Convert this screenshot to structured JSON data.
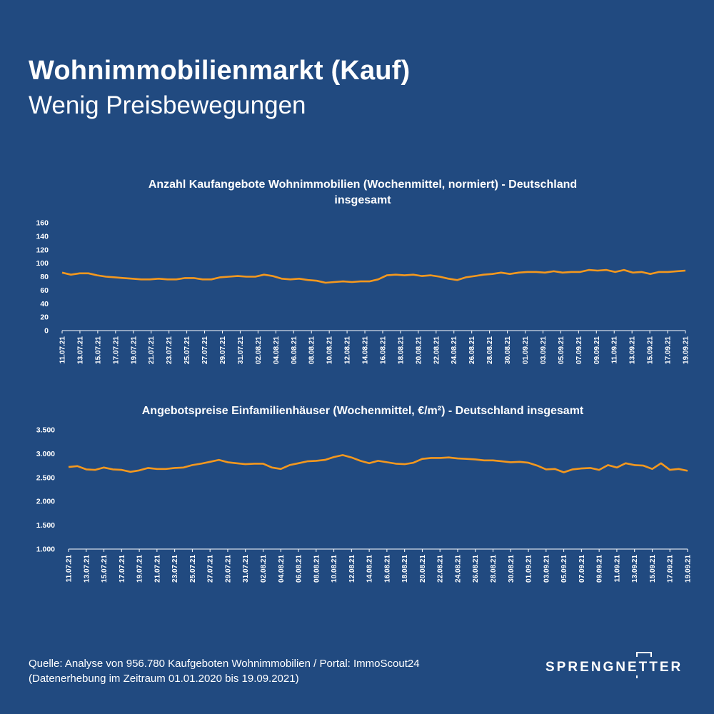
{
  "header": {
    "title": "Wohnimmobilienmarkt (Kauf)",
    "subtitle": "Wenig Preisbewegungen"
  },
  "chart_data": [
    {
      "type": "line",
      "title_line1": "Anzahl Kaufangebote Wohnimmobilien (Wochenmittel, normiert) - Deutschland",
      "title_line2": "insgesamt",
      "ylim": [
        0,
        160
      ],
      "yticks": [
        "160",
        "140",
        "120",
        "100",
        "80",
        "60",
        "40",
        "20",
        "0"
      ],
      "ytick_values": [
        160,
        140,
        120,
        100,
        80,
        60,
        40,
        20,
        0
      ],
      "xtick_labels": [
        "11.07.21",
        "13.07.21",
        "15.07.21",
        "17.07.21",
        "19.07.21",
        "21.07.21",
        "23.07.21",
        "25.07.21",
        "27.07.21",
        "29.07.21",
        "31.07.21",
        "02.08.21",
        "04.08.21",
        "06.08.21",
        "08.08.21",
        "10.08.21",
        "12.08.21",
        "14.08.21",
        "16.08.21",
        "18.08.21",
        "20.08.21",
        "22.08.21",
        "24.08.21",
        "26.08.21",
        "28.08.21",
        "30.08.21",
        "01.09.21",
        "03.09.21",
        "05.09.21",
        "07.09.21",
        "09.09.21",
        "11.09.21",
        "13.09.21",
        "15.09.21",
        "17.09.21",
        "19.09.21"
      ],
      "grid": false,
      "color": "#f4981e",
      "values": [
        86,
        83,
        85,
        85,
        82,
        80,
        79,
        78,
        77,
        76,
        76,
        77,
        76,
        76,
        78,
        78,
        76,
        76,
        79,
        80,
        81,
        80,
        80,
        83,
        81,
        77,
        76,
        77,
        75,
        74,
        71,
        72,
        73,
        72,
        73,
        73,
        76,
        82,
        83,
        82,
        83,
        81,
        82,
        80,
        77,
        75,
        79,
        81,
        83,
        84,
        86,
        84,
        86,
        87,
        87,
        86,
        88,
        86,
        87,
        87,
        90,
        89,
        90,
        87,
        90,
        86,
        87,
        84,
        87,
        87,
        88,
        89
      ]
    },
    {
      "type": "line",
      "title_line1": "Angebotspreise Einfamilienhäuser (Wochenmittel, €/m²) - Deutschland insgesamt",
      "ylim": [
        1000,
        3500
      ],
      "yticks": [
        "3.500",
        "3.000",
        "2.500",
        "2.000",
        "1.500",
        "1.000"
      ],
      "ytick_values": [
        3500,
        3000,
        2500,
        2000,
        1500,
        1000
      ],
      "xtick_labels": [
        "11.07.21",
        "13.07.21",
        "15.07.21",
        "17.07.21",
        "19.07.21",
        "21.07.21",
        "23.07.21",
        "25.07.21",
        "27.07.21",
        "29.07.21",
        "31.07.21",
        "02.08.21",
        "04.08.21",
        "06.08.21",
        "08.08.21",
        "10.08.21",
        "12.08.21",
        "14.08.21",
        "16.08.21",
        "18.08.21",
        "20.08.21",
        "22.08.21",
        "24.08.21",
        "26.08.21",
        "28.08.21",
        "30.08.21",
        "01.09.21",
        "03.09.21",
        "05.09.21",
        "07.09.21",
        "09.09.21",
        "11.09.21",
        "13.09.21",
        "15.09.21",
        "17.09.21",
        "19.09.21"
      ],
      "grid": false,
      "color": "#f4981e",
      "values": [
        2720,
        2740,
        2670,
        2660,
        2710,
        2670,
        2660,
        2620,
        2650,
        2700,
        2680,
        2680,
        2700,
        2710,
        2760,
        2790,
        2830,
        2870,
        2820,
        2800,
        2780,
        2790,
        2790,
        2710,
        2680,
        2760,
        2800,
        2840,
        2850,
        2870,
        2930,
        2970,
        2920,
        2850,
        2800,
        2850,
        2820,
        2790,
        2780,
        2810,
        2890,
        2910,
        2910,
        2920,
        2900,
        2890,
        2880,
        2860,
        2860,
        2840,
        2820,
        2830,
        2810,
        2750,
        2670,
        2680,
        2610,
        2670,
        2690,
        2700,
        2660,
        2760,
        2710,
        2800,
        2760,
        2750,
        2680,
        2800,
        2660,
        2680,
        2640
      ]
    }
  ],
  "footer": {
    "source_line1": "Quelle: Analyse von 956.780 Kaufgeboten Wohnimmobilien / Portal: ImmoScout24",
    "source_line2": "(Datenerhebung im Zeitraum  01.01.2020 bis  19.09.2021)",
    "logo_text": "SPRENGNETTER"
  }
}
